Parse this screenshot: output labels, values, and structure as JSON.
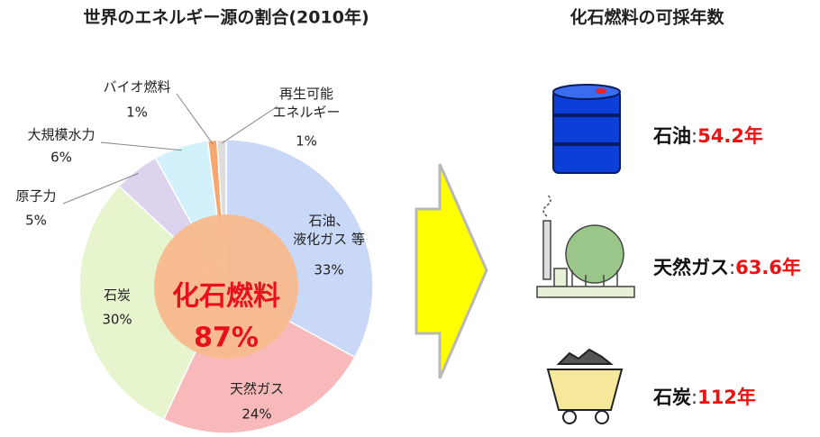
{
  "chart_data": {
    "type": "pie",
    "title": "世界のエネルギー源の割合(2010年)",
    "categories": [
      "石油、\n液化ガス 等",
      "天然ガス",
      "石炭",
      "原子力",
      "大規模水力",
      "バイオ燃料",
      "再生可能\nエネルギー"
    ],
    "values": [
      33,
      24,
      30,
      5,
      6,
      1,
      1
    ],
    "value_labels": [
      "33%",
      "24%",
      "30%",
      "5%",
      "6%",
      "1%",
      "1%"
    ],
    "colors": [
      "#c9d8f7",
      "#f7b9b9",
      "#e6f5cd",
      "#dcd3ee",
      "#d3f1fb",
      "#f7a66e",
      "#dddddd"
    ],
    "center_text": [
      "化石燃料",
      "87%"
    ]
  },
  "reserves": {
    "title": "化石燃料の可採年数",
    "separator": ":",
    "items": [
      {
        "name": "石油",
        "years": "54.2年"
      },
      {
        "name": "天然ガス",
        "years": "63.6年"
      },
      {
        "name": "石炭",
        "years": "112年"
      }
    ]
  }
}
